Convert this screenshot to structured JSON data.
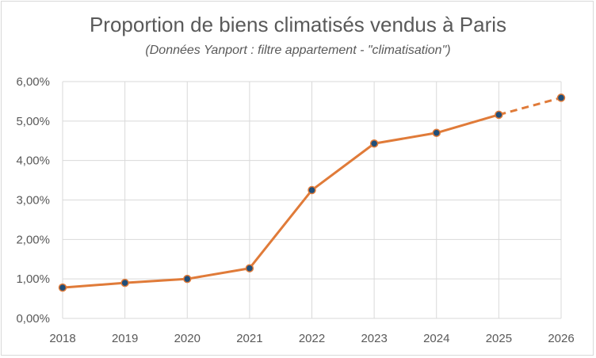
{
  "chart_data": {
    "type": "line",
    "title": "Proportion de biens climatisés vendus à Paris",
    "subtitle": "(Données Yanport : filtre appartement - \"climatisation\")",
    "x": [
      "2018",
      "2019",
      "2020",
      "2021",
      "2022",
      "2023",
      "2024",
      "2025",
      "2026"
    ],
    "series": [
      {
        "values": [
          0.78,
          0.9,
          1.0,
          1.27,
          3.25,
          4.43,
          4.7,
          5.16,
          5.59
        ],
        "projected_from_index": 7,
        "color": "#E07B39",
        "marker_fill": "#1F4E79"
      }
    ],
    "y_ticks": [
      "0,00%",
      "1,00%",
      "2,00%",
      "3,00%",
      "4,00%",
      "5,00%",
      "6,00%"
    ],
    "ylim": [
      0,
      6
    ],
    "y_unit": "%",
    "grid": true,
    "legend": "none",
    "xlabel": "",
    "ylabel": ""
  }
}
